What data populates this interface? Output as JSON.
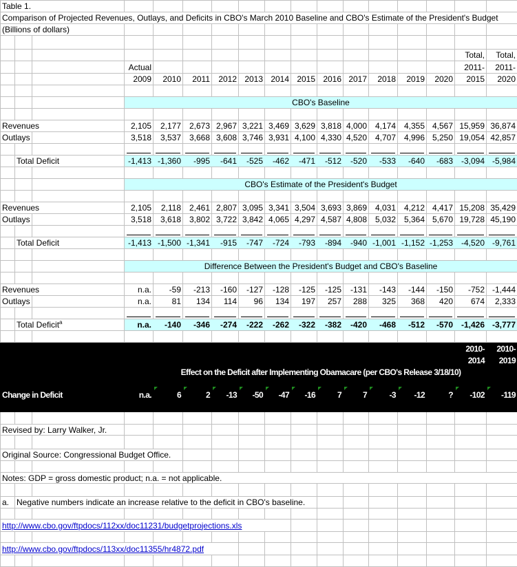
{
  "title": {
    "table_label": "Table 1.",
    "heading": "Comparison of Projected Revenues, Outlays, and Deficits in CBO's March 2010 Baseline and CBO's Estimate of the President's Budget",
    "units": "(Billions of dollars)"
  },
  "header": {
    "line1": [
      "",
      "",
      "",
      "",
      "",
      "",
      "",
      "",
      "",
      "",
      "",
      "",
      "Total,",
      "Total,"
    ],
    "line2": [
      "Actual",
      "",
      "",
      "",
      "",
      "",
      "",
      "",
      "",
      "",
      "",
      "",
      "2011-",
      "2011-"
    ],
    "line3": [
      "2009",
      "2010",
      "2011",
      "2012",
      "2013",
      "2014",
      "2015",
      "2016",
      "2017",
      "2018",
      "2019",
      "2020",
      "2015",
      "2020"
    ]
  },
  "sections": [
    {
      "title": "CBO's Baseline",
      "revenues": {
        "label": "Revenues",
        "values": [
          "2,105",
          "2,177",
          "2,673",
          "2,967",
          "3,221",
          "3,469",
          "3,629",
          "3,818",
          "4,000",
          "4,174",
          "4,355",
          "4,567",
          "15,959",
          "36,874"
        ]
      },
      "outlays": {
        "label": "Outlays",
        "values": [
          "3,518",
          "3,537",
          "3,668",
          "3,608",
          "3,746",
          "3,931",
          "4,100",
          "4,330",
          "4,520",
          "4,707",
          "4,996",
          "5,250",
          "19,054",
          "42,857"
        ]
      },
      "total": {
        "label": "Total Deficit",
        "sup": "",
        "values": [
          "-1,413",
          "-1,360",
          "-995",
          "-641",
          "-525",
          "-462",
          "-471",
          "-512",
          "-520",
          "-533",
          "-640",
          "-683",
          "-3,094",
          "-5,984"
        ]
      }
    },
    {
      "title": "CBO's Estimate of the President's Budget",
      "revenues": {
        "label": "Revenues",
        "values": [
          "2,105",
          "2,118",
          "2,461",
          "2,807",
          "3,095",
          "3,341",
          "3,504",
          "3,693",
          "3,869",
          "4,031",
          "4,212",
          "4,417",
          "15,208",
          "35,429"
        ]
      },
      "outlays": {
        "label": "Outlays",
        "values": [
          "3,518",
          "3,618",
          "3,802",
          "3,722",
          "3,842",
          "4,065",
          "4,297",
          "4,587",
          "4,808",
          "5,032",
          "5,364",
          "5,670",
          "19,728",
          "45,190"
        ]
      },
      "total": {
        "label": "Total Deficit",
        "sup": "",
        "values": [
          "-1,413",
          "-1,500",
          "-1,341",
          "-915",
          "-747",
          "-724",
          "-793",
          "-894",
          "-940",
          "-1,001",
          "-1,152",
          "-1,253",
          "-4,520",
          "-9,761"
        ]
      }
    },
    {
      "title": "Difference Between the President's Budget and CBO's Baseline",
      "revenues": {
        "label": "Revenues",
        "values": [
          "n.a.",
          "-59",
          "-213",
          "-160",
          "-127",
          "-128",
          "-125",
          "-125",
          "-131",
          "-143",
          "-144",
          "-150",
          "-752",
          "-1,444"
        ]
      },
      "outlays": {
        "label": "Outlays",
        "values": [
          "n.a.",
          "81",
          "134",
          "114",
          "96",
          "134",
          "197",
          "257",
          "288",
          "325",
          "368",
          "420",
          "674",
          "2,333"
        ]
      },
      "total": {
        "label": "Total Deficit",
        "sup": "a",
        "bold": true,
        "values": [
          "n.a.",
          "-140",
          "-346",
          "-274",
          "-222",
          "-262",
          "-322",
          "-382",
          "-420",
          "-468",
          "-512",
          "-570",
          "-1,426",
          "-3,777"
        ]
      }
    }
  ],
  "obamacare": {
    "header_line1": [
      "",
      "",
      "",
      "",
      "",
      "",
      "",
      "",
      "",
      "",
      "",
      "",
      "2010-",
      "2010-"
    ],
    "header_line2": [
      "",
      "",
      "",
      "",
      "",
      "",
      "",
      "",
      "",
      "",
      "",
      "",
      "2014",
      "2019"
    ],
    "title": "Effect on the Deficit after Implementing Obamacare (per CBO's Release 3/18/10)",
    "row_label": "Change in Deficit",
    "values": [
      "n.a.",
      "6",
      "2",
      "-13",
      "-50",
      "-47",
      "-16",
      "7",
      "7",
      "-3",
      "-12",
      "?",
      "-102",
      "-119"
    ],
    "error_indicator": [
      false,
      true,
      true,
      true,
      true,
      true,
      true,
      true,
      true,
      true,
      true,
      false,
      true,
      true
    ],
    "colors": {
      "background": "#000000",
      "text": "#ffffff",
      "indicator": "#1f8a1f"
    }
  },
  "footer": {
    "revised_by": "Revised by: Larry Walker, Jr.",
    "source": "Original Source:  Congressional Budget Office.",
    "notes": "Notes:  GDP = gross domestic product; n.a. = not applicable.",
    "footnote_marker": "a.",
    "footnote_text": "Negative numbers indicate an increase relative to the deficit in CBO's baseline.",
    "link1": "http://www.cbo.gov/ftpdocs/112xx/doc11231/budgetprojections.xls",
    "link2": "http://www.cbo.gov/ftpdocs/113xx/doc11355/hr4872.pdf"
  },
  "colors": {
    "section_fill": "#ccffff",
    "gridline": "#c0c0c0",
    "link": "#0000cc"
  }
}
